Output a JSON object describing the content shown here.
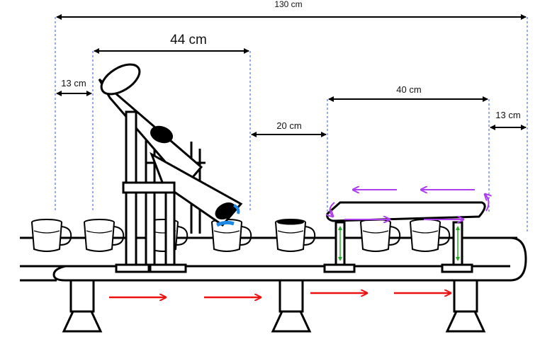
{
  "dimensions": {
    "total": "130 cm",
    "tube_length": "44 cm",
    "left_gap": "13 cm",
    "mid_gap": "20 cm",
    "conveyor_length": "40 cm",
    "right_gap": "13 cm"
  },
  "colors": {
    "outline": "#000000",
    "dimension_guide": "#3355dd",
    "flow_arrow": "#ee1111",
    "rotation_arrow": "#b03cf0",
    "support_green": "#22aa22",
    "nozzle_blue": "#1e88e5"
  },
  "icons": {
    "bucket": "bucket-icon",
    "flow": "right-arrow-icon",
    "rotation": "rotation-arrow-icon"
  }
}
